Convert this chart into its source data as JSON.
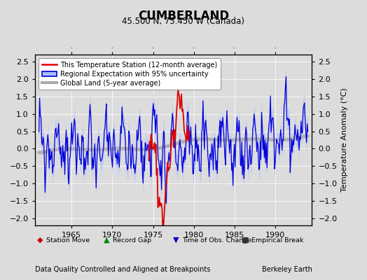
{
  "title": "CUMBERLAND",
  "subtitle": "45.500 N, 75.450 W (Canada)",
  "ylabel": "Temperature Anomaly (°C)",
  "xlabel_left": "Data Quality Controlled and Aligned at Breakpoints",
  "xlabel_right": "Berkeley Earth",
  "ylim": [
    -2.2,
    2.7
  ],
  "xlim": [
    1960.5,
    1994.5
  ],
  "xticks": [
    1965,
    1970,
    1975,
    1980,
    1985,
    1990
  ],
  "yticks": [
    -2,
    -1.5,
    -1,
    -0.5,
    0,
    0.5,
    1,
    1.5,
    2,
    2.5
  ],
  "bg_color": "#dcdcdc",
  "plot_bg_color": "#dcdcdc",
  "grid_color": "#ffffff",
  "legend_entries": [
    "This Temperature Station (12-month average)",
    "Regional Expectation with 95% uncertainty",
    "Global Land (5-year average)"
  ],
  "blue_line_color": "#0000dd",
  "blue_fill_color": "#aabbff",
  "red_line_color": "#dd0000",
  "gray_line_color": "#aaaaaa",
  "station_marker_color": "#cc0000",
  "record_gap_color": "#008800",
  "obs_change_color": "#0000cc",
  "empirical_break_color": "#333333",
  "marker_legend": [
    {
      "symbol": "◆",
      "color": "#cc0000",
      "label": "Station Move"
    },
    {
      "symbol": "▲",
      "color": "#008800",
      "label": "Record Gap"
    },
    {
      "symbol": "▼",
      "color": "#0000cc",
      "label": "Time of Obs. Change"
    },
    {
      "symbol": "■",
      "color": "#333333",
      "label": "Empirical Break"
    }
  ]
}
